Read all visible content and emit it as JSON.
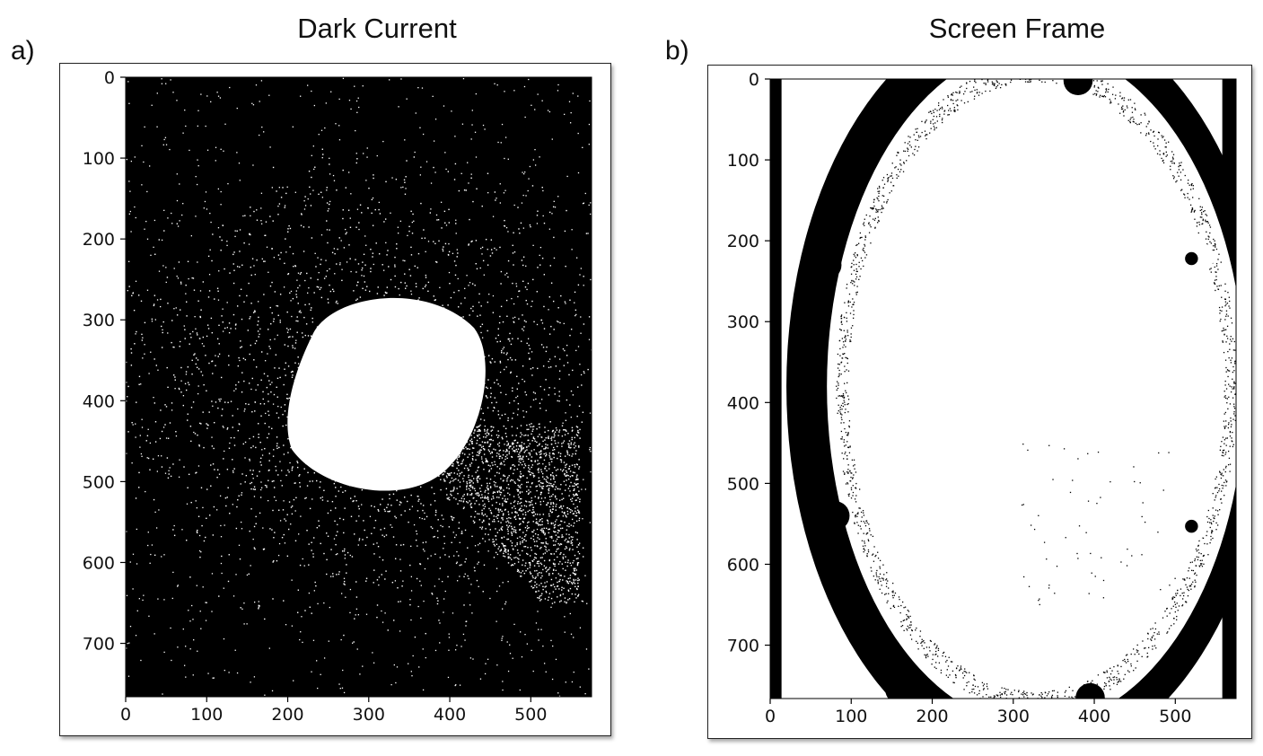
{
  "figure": {
    "panels": [
      {
        "letter": "a)",
        "title": "Dark Current",
        "x_ticks": [
          "0",
          "100",
          "200",
          "300",
          "400",
          "500"
        ],
        "y_ticks": [
          "0",
          "100",
          "200",
          "300",
          "400",
          "500",
          "600",
          "700"
        ]
      },
      {
        "letter": "b)",
        "title": "Screen Frame",
        "x_ticks": [
          "0",
          "100",
          "200",
          "300",
          "400",
          "500"
        ],
        "y_ticks": [
          "0",
          "100",
          "200",
          "300",
          "400",
          "500",
          "600",
          "700"
        ]
      }
    ]
  }
}
